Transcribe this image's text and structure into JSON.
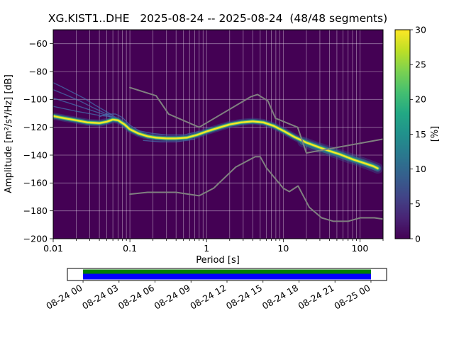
{
  "chart_data": {
    "type": "heatmap",
    "title": "XG.KIST1..DHE   2025-08-24 -- 2025-08-24  (48/48 segments)",
    "xlabel": "Period [s]",
    "ylabel": "Amplitude [m²/s⁴/Hz] [dB]",
    "xlim": [
      0.01,
      200
    ],
    "ylim": [
      -200,
      -50
    ],
    "x_tick_values": [
      0.01,
      0.1,
      1,
      10,
      100
    ],
    "x_tick_labels": [
      "0.01",
      "0.1",
      "1",
      "10",
      "100"
    ],
    "y_ticks": [
      -200,
      -180,
      -160,
      -140,
      -120,
      -100,
      -80,
      -60
    ],
    "grid": true,
    "background_color": "#440154",
    "grid_color": "rgba(255,255,255,0.45)",
    "colorbar": {
      "label": "[%]",
      "min": 0,
      "max": 30,
      "tick_step": 5,
      "colormap": "viridis",
      "stops": [
        [
          0,
          "#440154"
        ],
        [
          0.1,
          "#482475"
        ],
        [
          0.2,
          "#414487"
        ],
        [
          0.3,
          "#355f8d"
        ],
        [
          0.4,
          "#2a788e"
        ],
        [
          0.5,
          "#21918c"
        ],
        [
          0.6,
          "#22a884"
        ],
        [
          0.7,
          "#44bf70"
        ],
        [
          0.8,
          "#7ad151"
        ],
        [
          0.9,
          "#bddf26"
        ],
        [
          1,
          "#fde725"
        ]
      ]
    },
    "psd_mode": {
      "periods": [
        0.01,
        0.014,
        0.02,
        0.028,
        0.04,
        0.05,
        0.06,
        0.07,
        0.085,
        0.1,
        0.13,
        0.17,
        0.22,
        0.3,
        0.4,
        0.55,
        0.75,
        1.0,
        1.4,
        2.0,
        2.8,
        4.0,
        5.5,
        7.5,
        10,
        14,
        20,
        28,
        40,
        55,
        80,
        110,
        150,
        170
      ],
      "db": [
        -112,
        -113.5,
        -115,
        -116.5,
        -117,
        -116,
        -114.5,
        -115,
        -118,
        -121.5,
        -124.5,
        -126.5,
        -127.5,
        -128,
        -128,
        -127.5,
        -125.5,
        -123,
        -120.5,
        -118,
        -116.5,
        -115.8,
        -116.5,
        -119,
        -122.5,
        -127,
        -131,
        -134,
        -137,
        -139.5,
        -143,
        -145.5,
        -148,
        -149.5
      ]
    },
    "psd_spread": {
      "periods": [
        18,
        25,
        35,
        50,
        70,
        100,
        140,
        170
      ],
      "db": [
        -130.5,
        -133.5,
        -136.2,
        -138.8,
        -141.8,
        -144.6,
        -147.6,
        -149.5
      ]
    },
    "secondary_traces": [
      [
        [
          0.01,
          -88
        ],
        [
          0.013,
          -91
        ],
        [
          0.018,
          -95
        ],
        [
          0.025,
          -99
        ],
        [
          0.035,
          -104
        ],
        [
          0.05,
          -109
        ],
        [
          0.07,
          -114
        ],
        [
          0.1,
          -121
        ],
        [
          0.13,
          -124.5
        ]
      ],
      [
        [
          0.01,
          -93
        ],
        [
          0.015,
          -97
        ],
        [
          0.022,
          -101
        ],
        [
          0.032,
          -105.5
        ],
        [
          0.05,
          -110.5
        ],
        [
          0.08,
          -116
        ],
        [
          0.11,
          -122
        ]
      ],
      [
        [
          0.01,
          -99
        ],
        [
          0.018,
          -103.5
        ],
        [
          0.03,
          -107.5
        ],
        [
          0.05,
          -111.5
        ],
        [
          0.08,
          -116.5
        ],
        [
          0.12,
          -123
        ]
      ],
      [
        [
          0.01,
          -105
        ],
        [
          0.02,
          -108.5
        ],
        [
          0.04,
          -111.5
        ],
        [
          0.06,
          -112.5
        ],
        [
          0.09,
          -119.5
        ]
      ],
      [
        [
          0.04,
          -112.5
        ],
        [
          0.05,
          -110.5
        ],
        [
          0.065,
          -110.5
        ],
        [
          0.08,
          -113
        ],
        [
          0.1,
          -118.5
        ],
        [
          0.14,
          -123.5
        ]
      ],
      [
        [
          0.13,
          -122.5
        ],
        [
          0.2,
          -124.5
        ],
        [
          0.3,
          -125.5
        ],
        [
          0.5,
          -125.5
        ],
        [
          0.8,
          -123
        ]
      ],
      [
        [
          0.15,
          -129.5
        ],
        [
          0.25,
          -130.5
        ],
        [
          0.4,
          -130.5
        ],
        [
          0.7,
          -128.5
        ]
      ]
    ],
    "noise_models": {
      "color": "#808080",
      "nhnm": [
        [
          0.1,
          -91.5
        ],
        [
          0.22,
          -97.4
        ],
        [
          0.32,
          -110.5
        ],
        [
          0.8,
          -120.0
        ],
        [
          3.8,
          -98.0
        ],
        [
          4.6,
          -96.5
        ],
        [
          6.3,
          -101.0
        ],
        [
          7.9,
          -113.5
        ],
        [
          15.4,
          -120.0
        ],
        [
          20.0,
          -138.5
        ],
        [
          354.8,
          -126.0
        ]
      ],
      "nlnm": [
        [
          0.1,
          -168.0
        ],
        [
          0.17,
          -166.7
        ],
        [
          0.4,
          -166.7
        ],
        [
          0.8,
          -169.2
        ],
        [
          1.24,
          -163.7
        ],
        [
          2.4,
          -148.6
        ],
        [
          4.3,
          -141.1
        ],
        [
          5.0,
          -141.1
        ],
        [
          6.0,
          -149.0
        ],
        [
          10.0,
          -163.8
        ],
        [
          12.0,
          -166.2
        ],
        [
          15.6,
          -162.1
        ],
        [
          21.9,
          -177.5
        ],
        [
          31.6,
          -185.0
        ],
        [
          45.0,
          -187.5
        ],
        [
          70.0,
          -187.5
        ],
        [
          101.0,
          -185.0
        ],
        [
          154.0,
          -185.0
        ],
        [
          328.0,
          -187.5
        ]
      ]
    },
    "style": {
      "ridge_strokes": [
        {
          "width": 10,
          "color": "rgba(59,82,139,0.45)"
        },
        {
          "width": 6.5,
          "color": "rgba(42,120,142,0.8)"
        },
        {
          "width": 4,
          "color": "rgba(94,201,98,0.95)"
        },
        {
          "width": 2.2,
          "color": "#fde725"
        }
      ],
      "spread_strokes": [
        {
          "width": 15,
          "color": "rgba(59,82,139,0.4)"
        },
        {
          "width": 9,
          "color": "rgba(34,168,132,0.55)"
        }
      ],
      "trace_color": "rgba(70,125,185,0.65)",
      "trace_width": 1.4
    },
    "timeline": {
      "labels": [
        "08-24 00",
        "08-24 03",
        "08-24 06",
        "08-24 09",
        "08-24 12",
        "08-24 15",
        "08-24 18",
        "08-24 21",
        "08-25 00"
      ],
      "coverage_color": "#008000",
      "data_color": "#0000ff",
      "start_frac": 0.049,
      "end_frac": 0.951
    }
  }
}
